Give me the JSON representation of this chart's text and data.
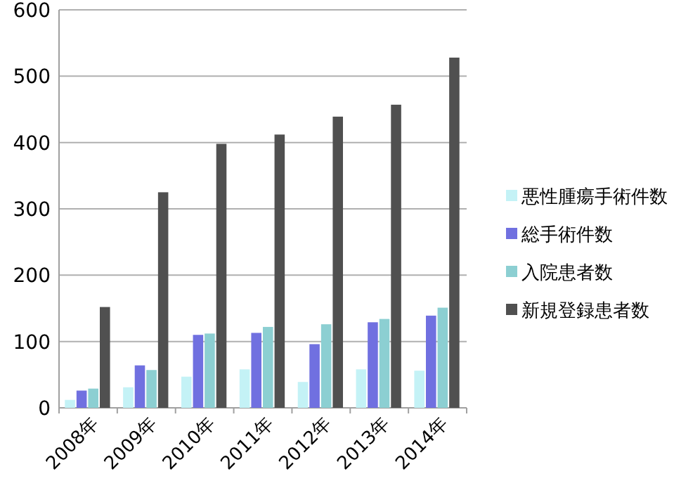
{
  "chart_data": {
    "type": "bar",
    "categories": [
      "2008年",
      "2009年",
      "2010年",
      "2011年",
      "2012年",
      "2013年",
      "2014年"
    ],
    "series": [
      {
        "name": "悪性腫瘍手術件数",
        "color": "#c4f2f6",
        "values": [
          12,
          31,
          47,
          58,
          39,
          58,
          56
        ]
      },
      {
        "name": "総手術件数",
        "color": "#7070e0",
        "values": [
          26,
          64,
          110,
          113,
          96,
          129,
          139
        ]
      },
      {
        "name": "入院患者数",
        "color": "#8ccfd2",
        "values": [
          29,
          57,
          112,
          122,
          126,
          134,
          151
        ]
      },
      {
        "name": "新規登録患者数",
        "color": "#505050",
        "values": [
          152,
          325,
          398,
          412,
          439,
          457,
          528
        ]
      }
    ],
    "ylim": [
      0,
      600
    ],
    "yticks": [
      0,
      100,
      200,
      300,
      400,
      500,
      600
    ],
    "grid": "y",
    "legend": "right"
  }
}
